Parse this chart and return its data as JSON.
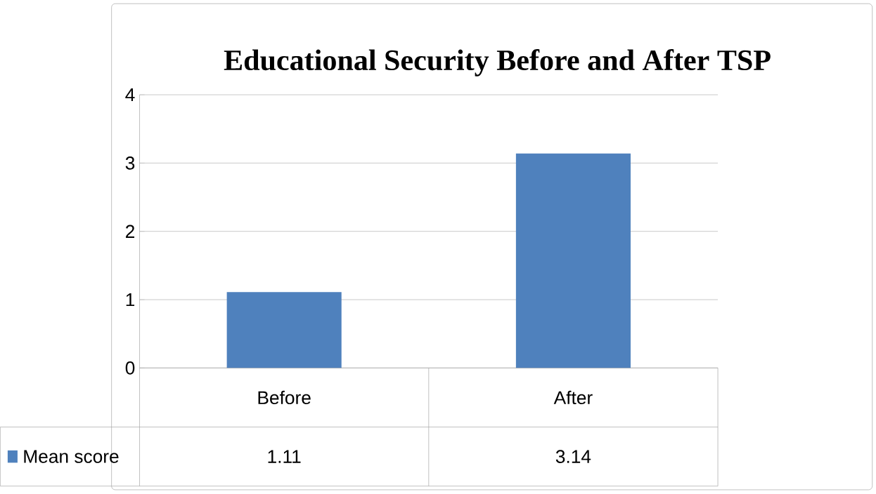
{
  "chart_data": {
    "type": "bar",
    "title": "Educational Security Before and After TSP",
    "categories": [
      "Before",
      "After"
    ],
    "series": [
      {
        "name": "Mean score",
        "color": "#4f81bd",
        "values": [
          1.11,
          3.14
        ]
      }
    ],
    "ylim": [
      0,
      4
    ],
    "yticks": [
      0,
      1,
      2,
      3,
      4
    ],
    "grid": "y",
    "data_labels": true
  }
}
